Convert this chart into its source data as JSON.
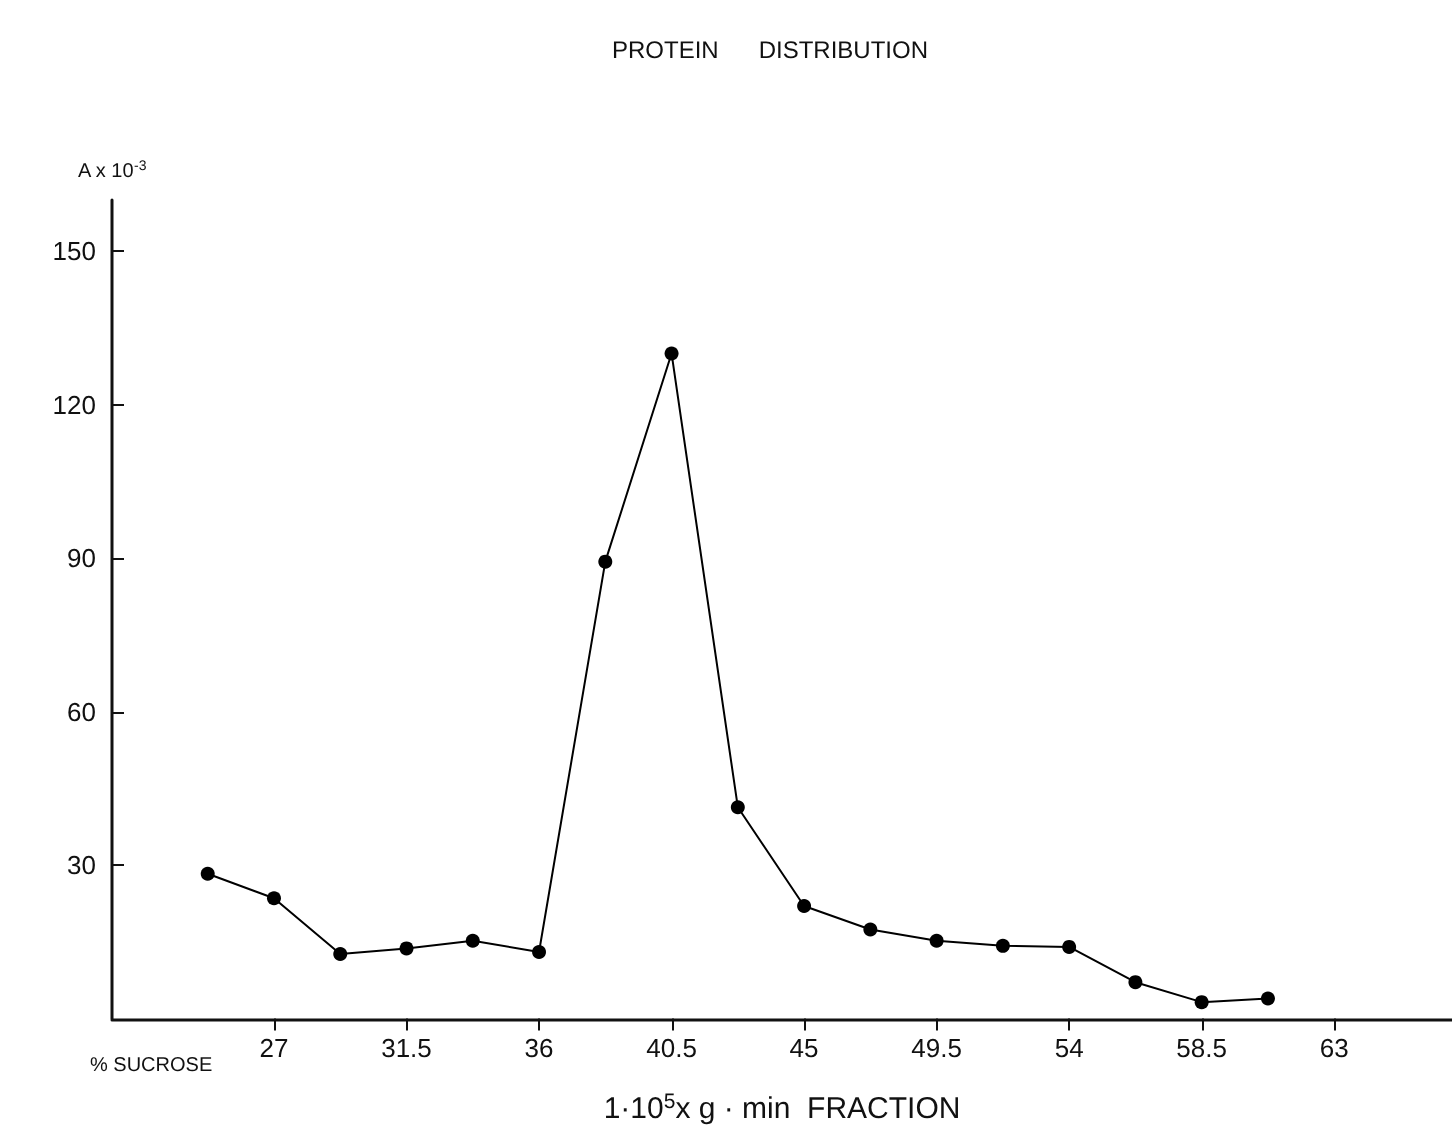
{
  "chart_data": {
    "type": "line",
    "title": "PROTEIN      DISTRIBUTION",
    "xlabel": "1·10$^{5}$x g · min  FRACTION",
    "ylabel": "A x 10$^{-3}$",
    "annotations": [
      "% SUCROSE"
    ],
    "x": [
      24.75,
      27,
      29.25,
      31.5,
      33.75,
      36,
      38.25,
      40.5,
      42.75,
      45,
      47.25,
      49.5,
      51.75,
      54,
      56.25,
      58.5,
      60.75
    ],
    "series": [
      {
        "color": "#000000",
        "values": [
          28.3,
          23.5,
          12.6,
          13.7,
          15.2,
          13,
          89.3,
          130,
          41.3,
          22,
          17.4,
          15.2,
          14.2,
          14,
          7.1,
          3.2,
          3.9
        ]
      }
    ],
    "xlim": [
      21.5,
      67
    ],
    "xticks": [
      27,
      31.5,
      36,
      40.5,
      45,
      49.5,
      54,
      58.5,
      63
    ],
    "ylim": [
      0,
      160
    ],
    "yticks": [
      30,
      60,
      90,
      120,
      150
    ],
    "grid": false,
    "marker": "circle",
    "line_style": "solid"
  }
}
